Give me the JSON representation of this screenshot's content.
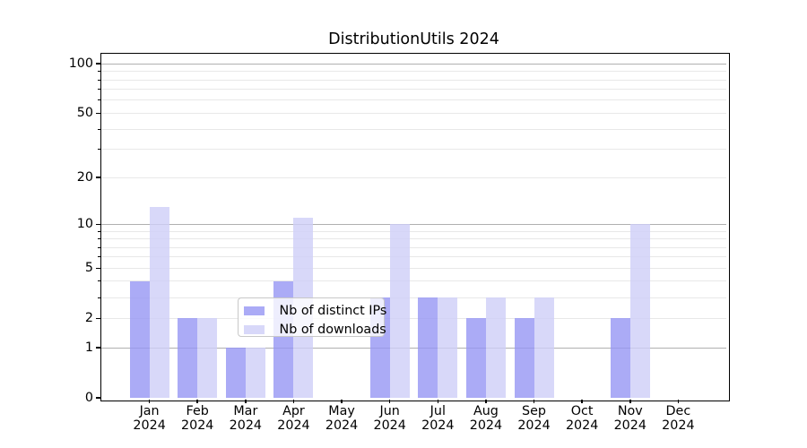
{
  "chart_data": {
    "type": "bar",
    "title": "DistributionUtils 2024",
    "months": [
      "Jan",
      "Feb",
      "Mar",
      "Apr",
      "May",
      "Jun",
      "Jul",
      "Aug",
      "Sep",
      "Oct",
      "Nov",
      "Dec"
    ],
    "year_label": "2024",
    "categories": [
      "Jan 2024",
      "Feb 2024",
      "Mar 2024",
      "Apr 2024",
      "May 2024",
      "Jun 2024",
      "Jul 2024",
      "Aug 2024",
      "Sep 2024",
      "Oct 2024",
      "Nov 2024",
      "Dec 2024"
    ],
    "series": [
      {
        "name": "Nb of distinct IPs",
        "color": "#9696f4",
        "values": [
          4,
          2,
          1,
          4,
          0,
          3,
          3,
          2,
          2,
          0,
          2,
          0
        ]
      },
      {
        "name": "Nb of downloads",
        "color": "#cecef7",
        "values": [
          13,
          2,
          1,
          11,
          0,
          10,
          3,
          3,
          3,
          0,
          10,
          0
        ]
      }
    ],
    "bar_alpha": 0.8,
    "yscale": "log10(value+1)",
    "y_tick_labels": [
      "0",
      "1",
      "2",
      "5",
      "10",
      "20",
      "50",
      "100"
    ],
    "y_tick_values": [
      0,
      1,
      2,
      5,
      10,
      20,
      50,
      100
    ],
    "y_major_gridlines": [
      1,
      10,
      100
    ],
    "y_minor_gridlines": [
      2,
      3,
      4,
      5,
      6,
      7,
      8,
      9,
      20,
      30,
      40,
      50,
      60,
      70,
      80,
      90
    ],
    "ylim": [
      0,
      116
    ],
    "grid": true,
    "legend_location": "lower center inside plot"
  },
  "colors": {
    "bar_distinct_ips": "#9696f4",
    "bar_downloads": "#cecef7",
    "grid_major": "#b0b0b0",
    "grid_minor": "#e8e8e8",
    "spine": "#000000",
    "legend_border": "#c8c8c8",
    "text": "#000000",
    "background": "#ffffff"
  }
}
